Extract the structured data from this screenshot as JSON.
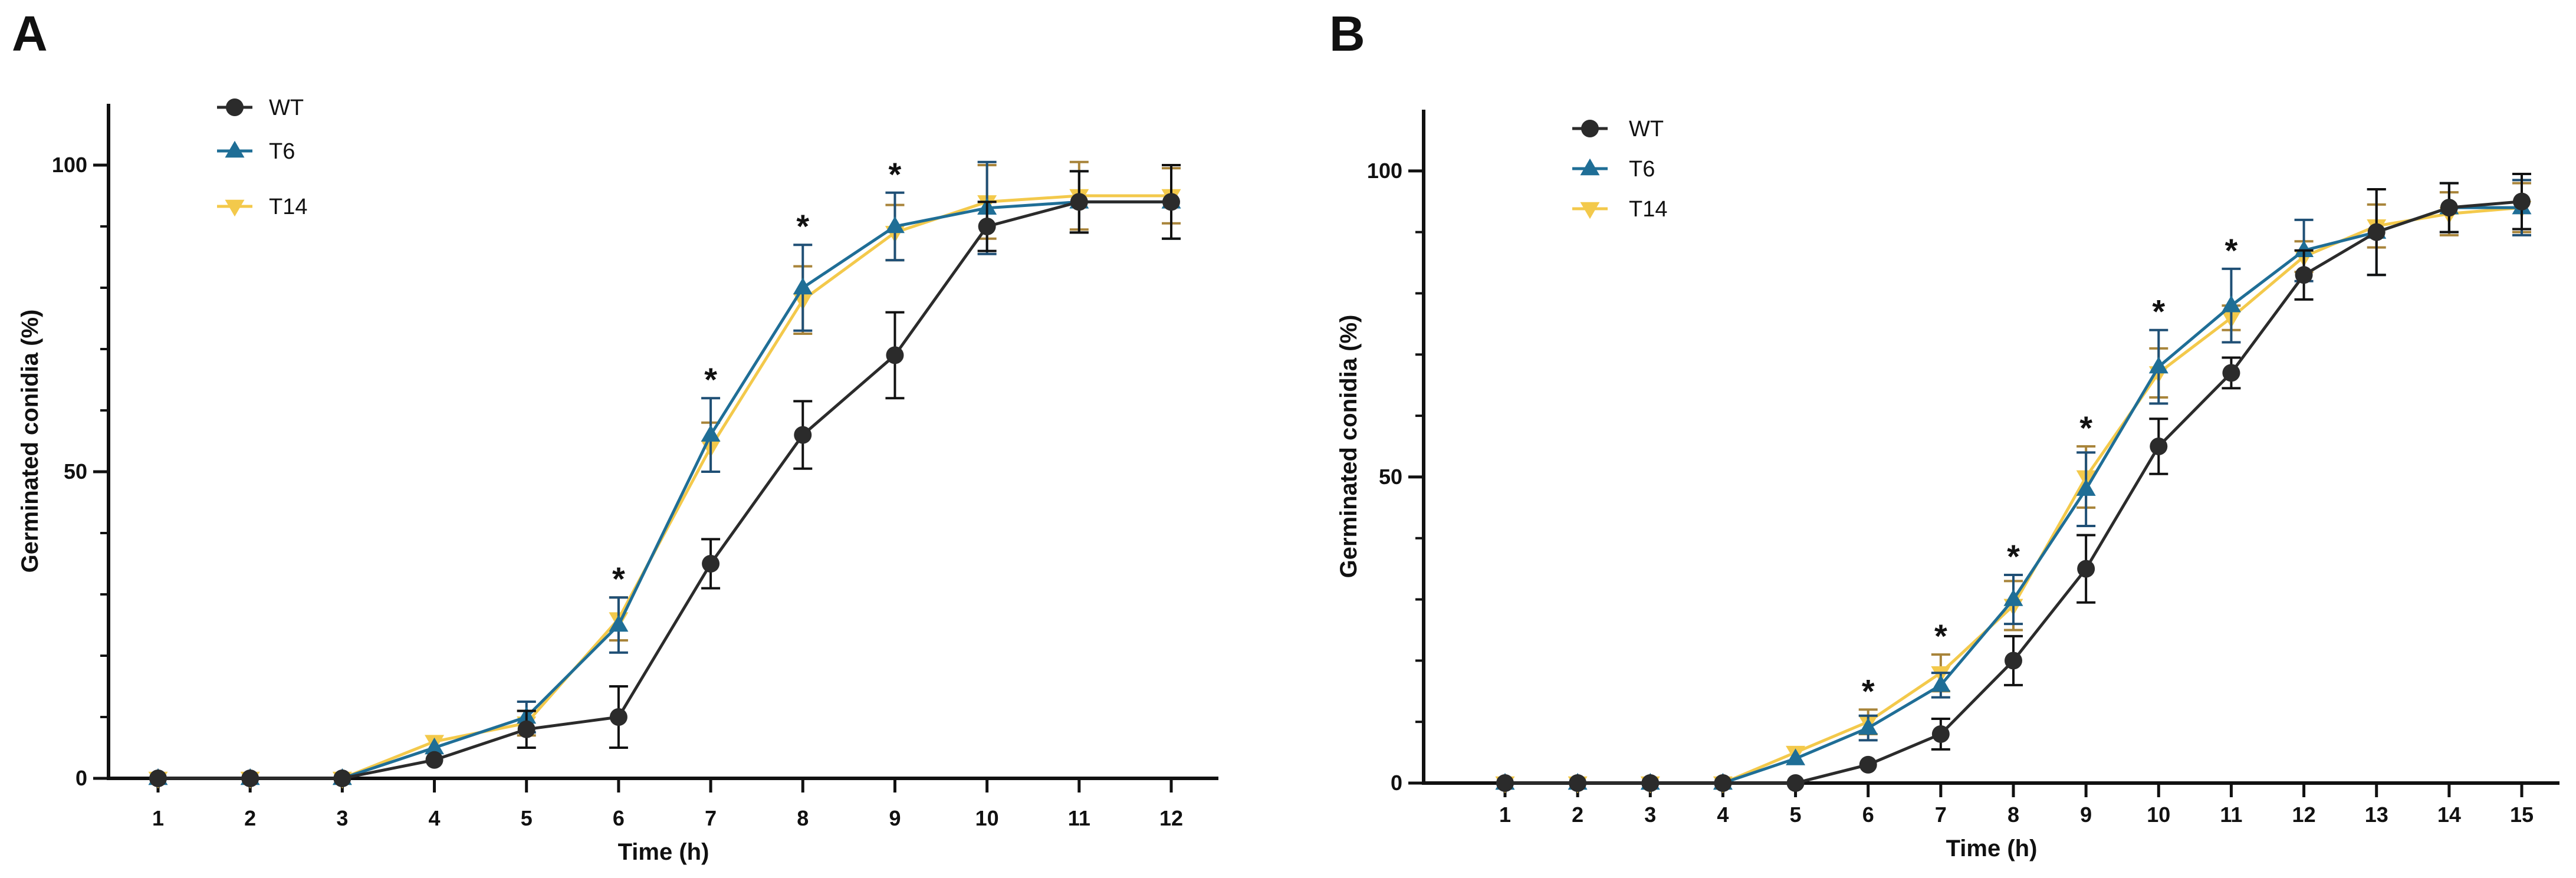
{
  "colors": {
    "WT": "#2b2b2b",
    "T6": "#1f6e96",
    "T14": "#f3c94b",
    "WT_errorbar": "#111111",
    "T6_errorbar": "#1f4f75",
    "T14_errorbar": "#a8843a",
    "axis": "#111111"
  },
  "chart_data": [
    {
      "type": "line",
      "panel_label": "A",
      "xlabel": "Time (h)",
      "ylabel": "Germinated conidia (%)",
      "xlim": [
        0.5,
        12.5
      ],
      "ylim": [
        0,
        110
      ],
      "y_ticks": [
        0,
        50,
        100
      ],
      "x": [
        1,
        2,
        3,
        4,
        5,
        6,
        7,
        8,
        9,
        10,
        11,
        12
      ],
      "legend_position": "top-left",
      "series": [
        {
          "name": "WT",
          "marker": "circle",
          "values": [
            0,
            0,
            0,
            3,
            8,
            10,
            35,
            56,
            69,
            90,
            94,
            94
          ],
          "errors": [
            0,
            0,
            0,
            0,
            3,
            5,
            4,
            5.5,
            7,
            4,
            5,
            6
          ]
        },
        {
          "name": "T6",
          "marker": "triangle-up",
          "values": [
            0,
            0,
            0,
            5,
            10,
            25,
            56,
            80,
            90,
            93,
            94,
            94
          ],
          "errors": [
            0,
            0,
            0,
            0,
            2.5,
            4.5,
            6,
            7,
            5.5,
            7.5,
            5,
            6
          ]
        },
        {
          "name": "T14",
          "marker": "triangle-down",
          "values": [
            0,
            0,
            0,
            6,
            9,
            26,
            54,
            78,
            89,
            94,
            95,
            95
          ],
          "errors": [
            0,
            0,
            0,
            0,
            2,
            3.5,
            4,
            5.5,
            4.5,
            6,
            5.5,
            4.5
          ]
        }
      ],
      "significance": {
        "marker": "*",
        "x": [
          6,
          7,
          8,
          9
        ]
      }
    },
    {
      "type": "line",
      "panel_label": "B",
      "xlabel": "Time (h)",
      "ylabel": "Germinated conidia (%)",
      "xlim": [
        0.5,
        15.5
      ],
      "ylim": [
        0,
        110
      ],
      "y_ticks": [
        0,
        50,
        100
      ],
      "x": [
        1,
        2,
        3,
        4,
        5,
        6,
        7,
        8,
        9,
        10,
        11,
        12,
        13,
        14,
        15
      ],
      "legend_position": "top-left",
      "series": [
        {
          "name": "WT",
          "marker": "circle",
          "values": [
            0,
            0,
            0,
            0,
            0,
            3,
            8,
            20,
            35,
            55,
            67,
            83,
            90,
            94,
            95
          ],
          "errors": [
            0,
            0,
            0,
            0,
            0,
            0,
            2.5,
            4,
            5.5,
            4.5,
            2.5,
            4,
            7,
            4,
            4.5
          ]
        },
        {
          "name": "T6",
          "marker": "triangle-up",
          "values": [
            0,
            0,
            0,
            0,
            4,
            9,
            16,
            30,
            48,
            68,
            78,
            87,
            90,
            94,
            94
          ],
          "errors": [
            0,
            0,
            0,
            0,
            0,
            2,
            2,
            4,
            6,
            6,
            6,
            5,
            7,
            4,
            4.5
          ]
        },
        {
          "name": "T14",
          "marker": "triangle-down",
          "values": [
            0,
            0,
            0,
            0,
            5,
            10,
            18,
            29,
            50,
            67,
            76,
            86,
            91,
            93,
            94
          ],
          "errors": [
            0,
            0,
            0,
            0,
            0,
            2,
            3,
            4,
            5,
            4,
            2,
            2.5,
            3.5,
            3.5,
            4
          ]
        }
      ],
      "significance": {
        "marker": "*",
        "x": [
          6,
          7,
          8,
          9,
          10,
          11
        ]
      }
    }
  ]
}
